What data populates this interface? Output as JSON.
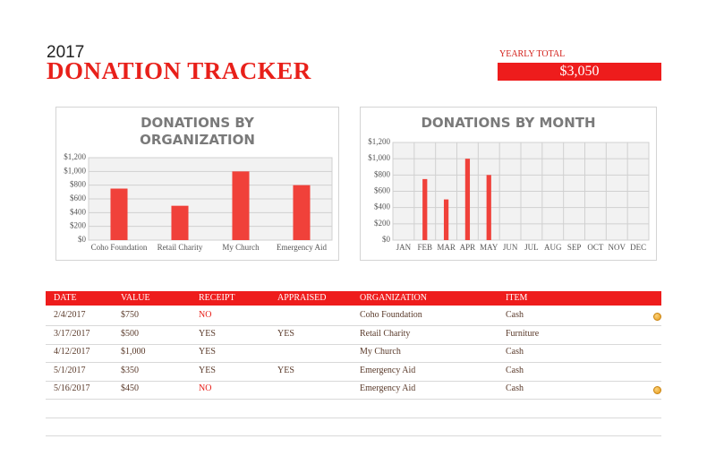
{
  "header": {
    "year": "2017",
    "title": "DONATION TRACKER",
    "total_label": "YEARLY TOTAL",
    "total": "$3,050"
  },
  "chart_data": [
    {
      "type": "bar",
      "title": "DONATIONS BY ORGANIZATION",
      "categories": [
        "Coho Foundation",
        "Retail Charity",
        "My Church",
        "Emergency Aid"
      ],
      "values": [
        750,
        500,
        1000,
        800
      ],
      "color": "#f0413a",
      "ylim": [
        0,
        1200
      ],
      "yticks": [
        {
          "value": 0,
          "label": "$0"
        },
        {
          "value": 200,
          "label": "$200"
        },
        {
          "value": 400,
          "label": "$400"
        },
        {
          "value": 600,
          "label": "$600"
        },
        {
          "value": 800,
          "label": "$800"
        },
        {
          "value": 1000,
          "label": "$1,000"
        },
        {
          "value": 1200,
          "label": "$1,200"
        }
      ],
      "grid": true
    },
    {
      "type": "bar",
      "title": "DONATIONS BY MONTH",
      "categories": [
        "JAN",
        "FEB",
        "MAR",
        "APR",
        "MAY",
        "JUN",
        "JUL",
        "AUG",
        "SEP",
        "OCT",
        "NOV",
        "DEC"
      ],
      "values": [
        null,
        750,
        500,
        1000,
        800,
        null,
        null,
        null,
        null,
        null,
        null,
        null
      ],
      "color": "#f0413a",
      "ylim": [
        0,
        1200
      ],
      "yticks": [
        {
          "value": 0,
          "label": "$0"
        },
        {
          "value": 200,
          "label": "$200"
        },
        {
          "value": 400,
          "label": "$400"
        },
        {
          "value": 600,
          "label": "$600"
        },
        {
          "value": 800,
          "label": "$800"
        },
        {
          "value": 1000,
          "label": "$1,000"
        },
        {
          "value": 1200,
          "label": "$1,200"
        }
      ],
      "grid": true
    }
  ],
  "table": {
    "columns": [
      "DATE",
      "VALUE",
      "RECEIPT",
      "APPRAISED",
      "ORGANIZATION",
      "ITEM"
    ],
    "rows": [
      [
        "2/4/2017",
        "$750",
        "NO",
        null,
        "Coho Foundation",
        "Cash"
      ],
      [
        "3/17/2017",
        "$500",
        "YES",
        "YES",
        "Retail Charity",
        "Furniture"
      ],
      [
        "4/12/2017",
        "$1,000",
        "YES",
        null,
        "My Church",
        "Cash"
      ],
      [
        "5/1/2017",
        "$350",
        "YES",
        "YES",
        "Emergency Aid",
        "Cash"
      ],
      [
        "5/16/2017",
        "$450",
        "NO",
        null,
        "Emergency Aid",
        "Cash"
      ]
    ]
  }
}
